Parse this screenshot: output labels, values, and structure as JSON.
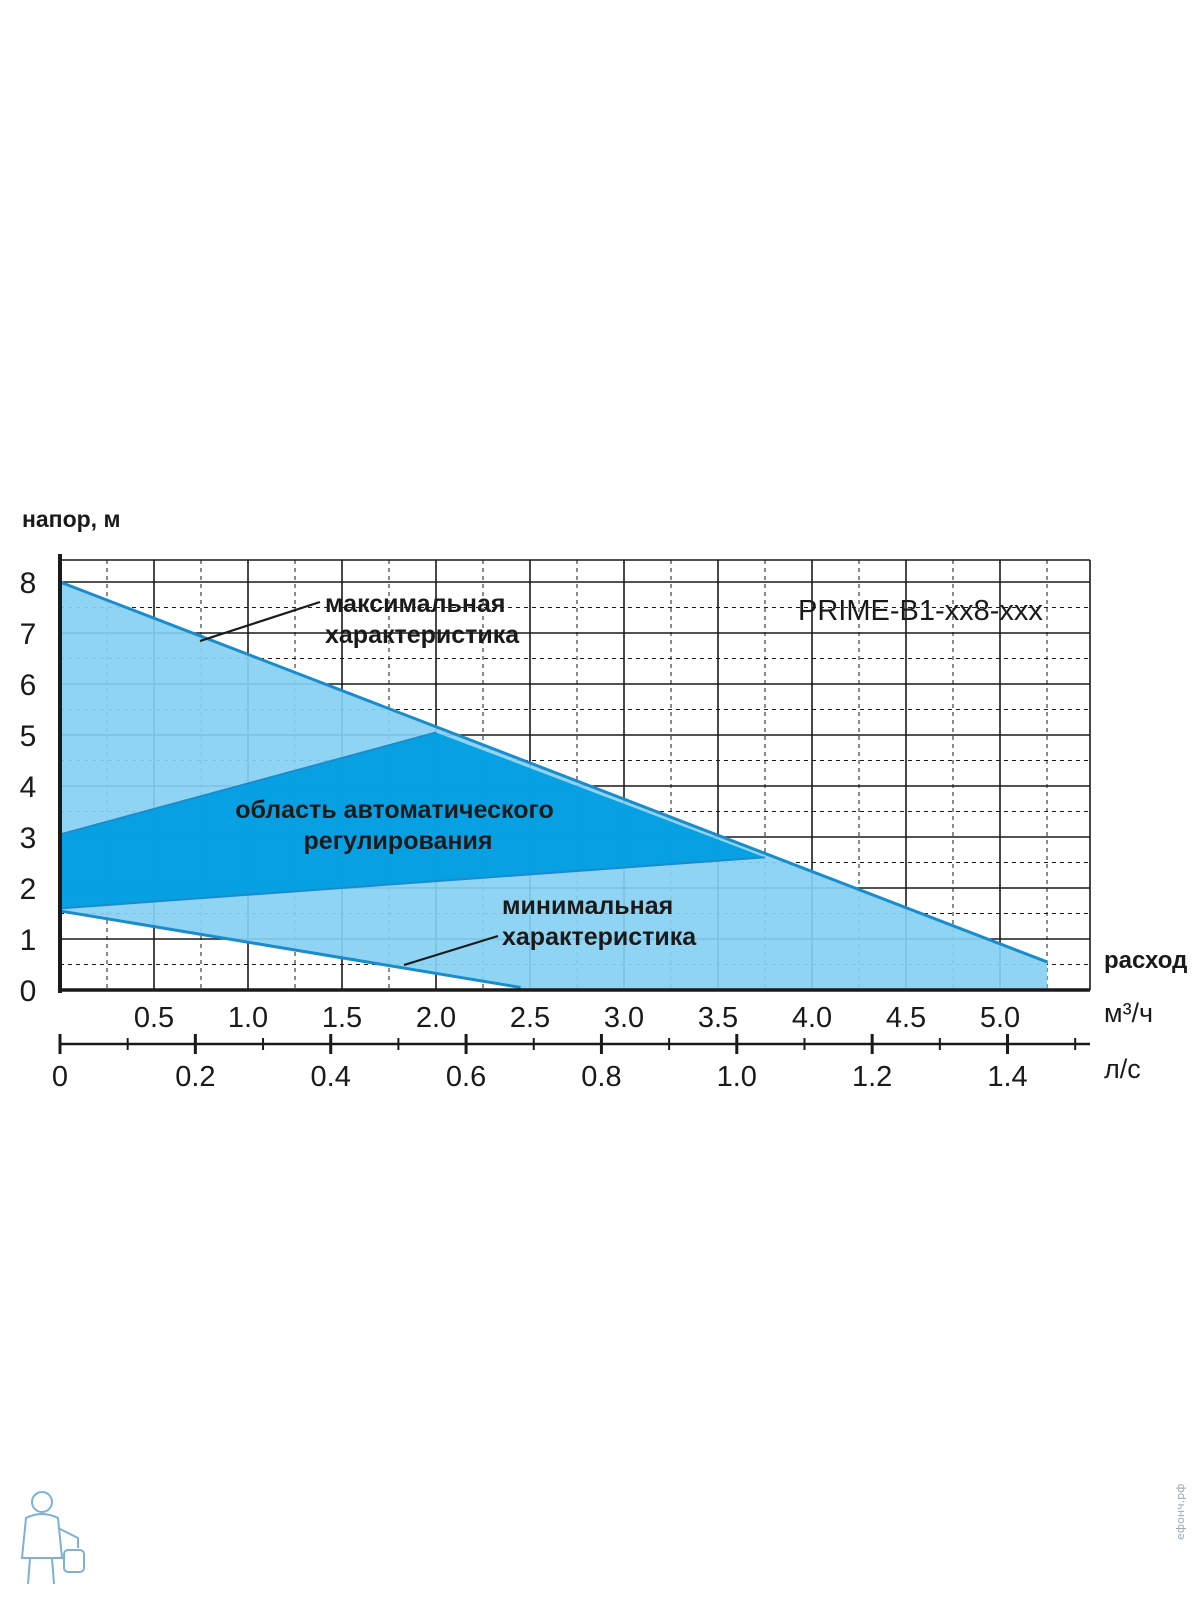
{
  "chart_data": {
    "type": "area",
    "model_label": "PRIME-B1-xx8-xxx",
    "ylabel": "напор, м",
    "xlabel": "расход",
    "x_unit_primary": "м³/ч",
    "x_unit_secondary": "л/с",
    "ylim": [
      0,
      8
    ],
    "xlim": [
      0,
      5.5
    ],
    "y_ticks": [
      "0",
      "1",
      "2",
      "3",
      "4",
      "5",
      "6",
      "7",
      "8"
    ],
    "x_ticks_primary": [
      "0.5",
      "1.0",
      "1.5",
      "2.0",
      "2.5",
      "3.0",
      "3.5",
      "4.0",
      "4.5",
      "5.0"
    ],
    "x_ticks_secondary": [
      "0",
      "0.2",
      "0.4",
      "0.6",
      "0.8",
      "1.0",
      "1.2",
      "1.4"
    ],
    "grid": true,
    "series": [
      {
        "name": "максимальная характеристика",
        "color": "#85d0f2",
        "x": [
          0,
          5.25
        ],
        "y": [
          8.0,
          0.55
        ]
      },
      {
        "name": "минимальная характеристика",
        "x": [
          0,
          2.45
        ],
        "y": [
          1.55,
          0.05
        ]
      },
      {
        "name": "область автоматического регулирования",
        "color": "#009ee2",
        "x": [
          0,
          2.0,
          3.75
        ],
        "y": [
          3.05,
          5.05,
          2.6
        ]
      }
    ],
    "auto_region_lower_edge": {
      "x": [
        0,
        3.75
      ],
      "y": [
        1.6,
        2.6
      ]
    },
    "annotations": {
      "max_label": [
        "максимальная",
        "характеристика"
      ],
      "min_label": [
        "минимальная",
        "характеристика"
      ],
      "auto_label": [
        "область автоматического",
        "регулирования"
      ]
    },
    "colors": {
      "light_area": "#85d0f2",
      "dark_area": "#009ee2",
      "curve_line": "#1a8ccd",
      "axis": "#1a1a1a"
    }
  },
  "watermark": "ефонч.рф"
}
